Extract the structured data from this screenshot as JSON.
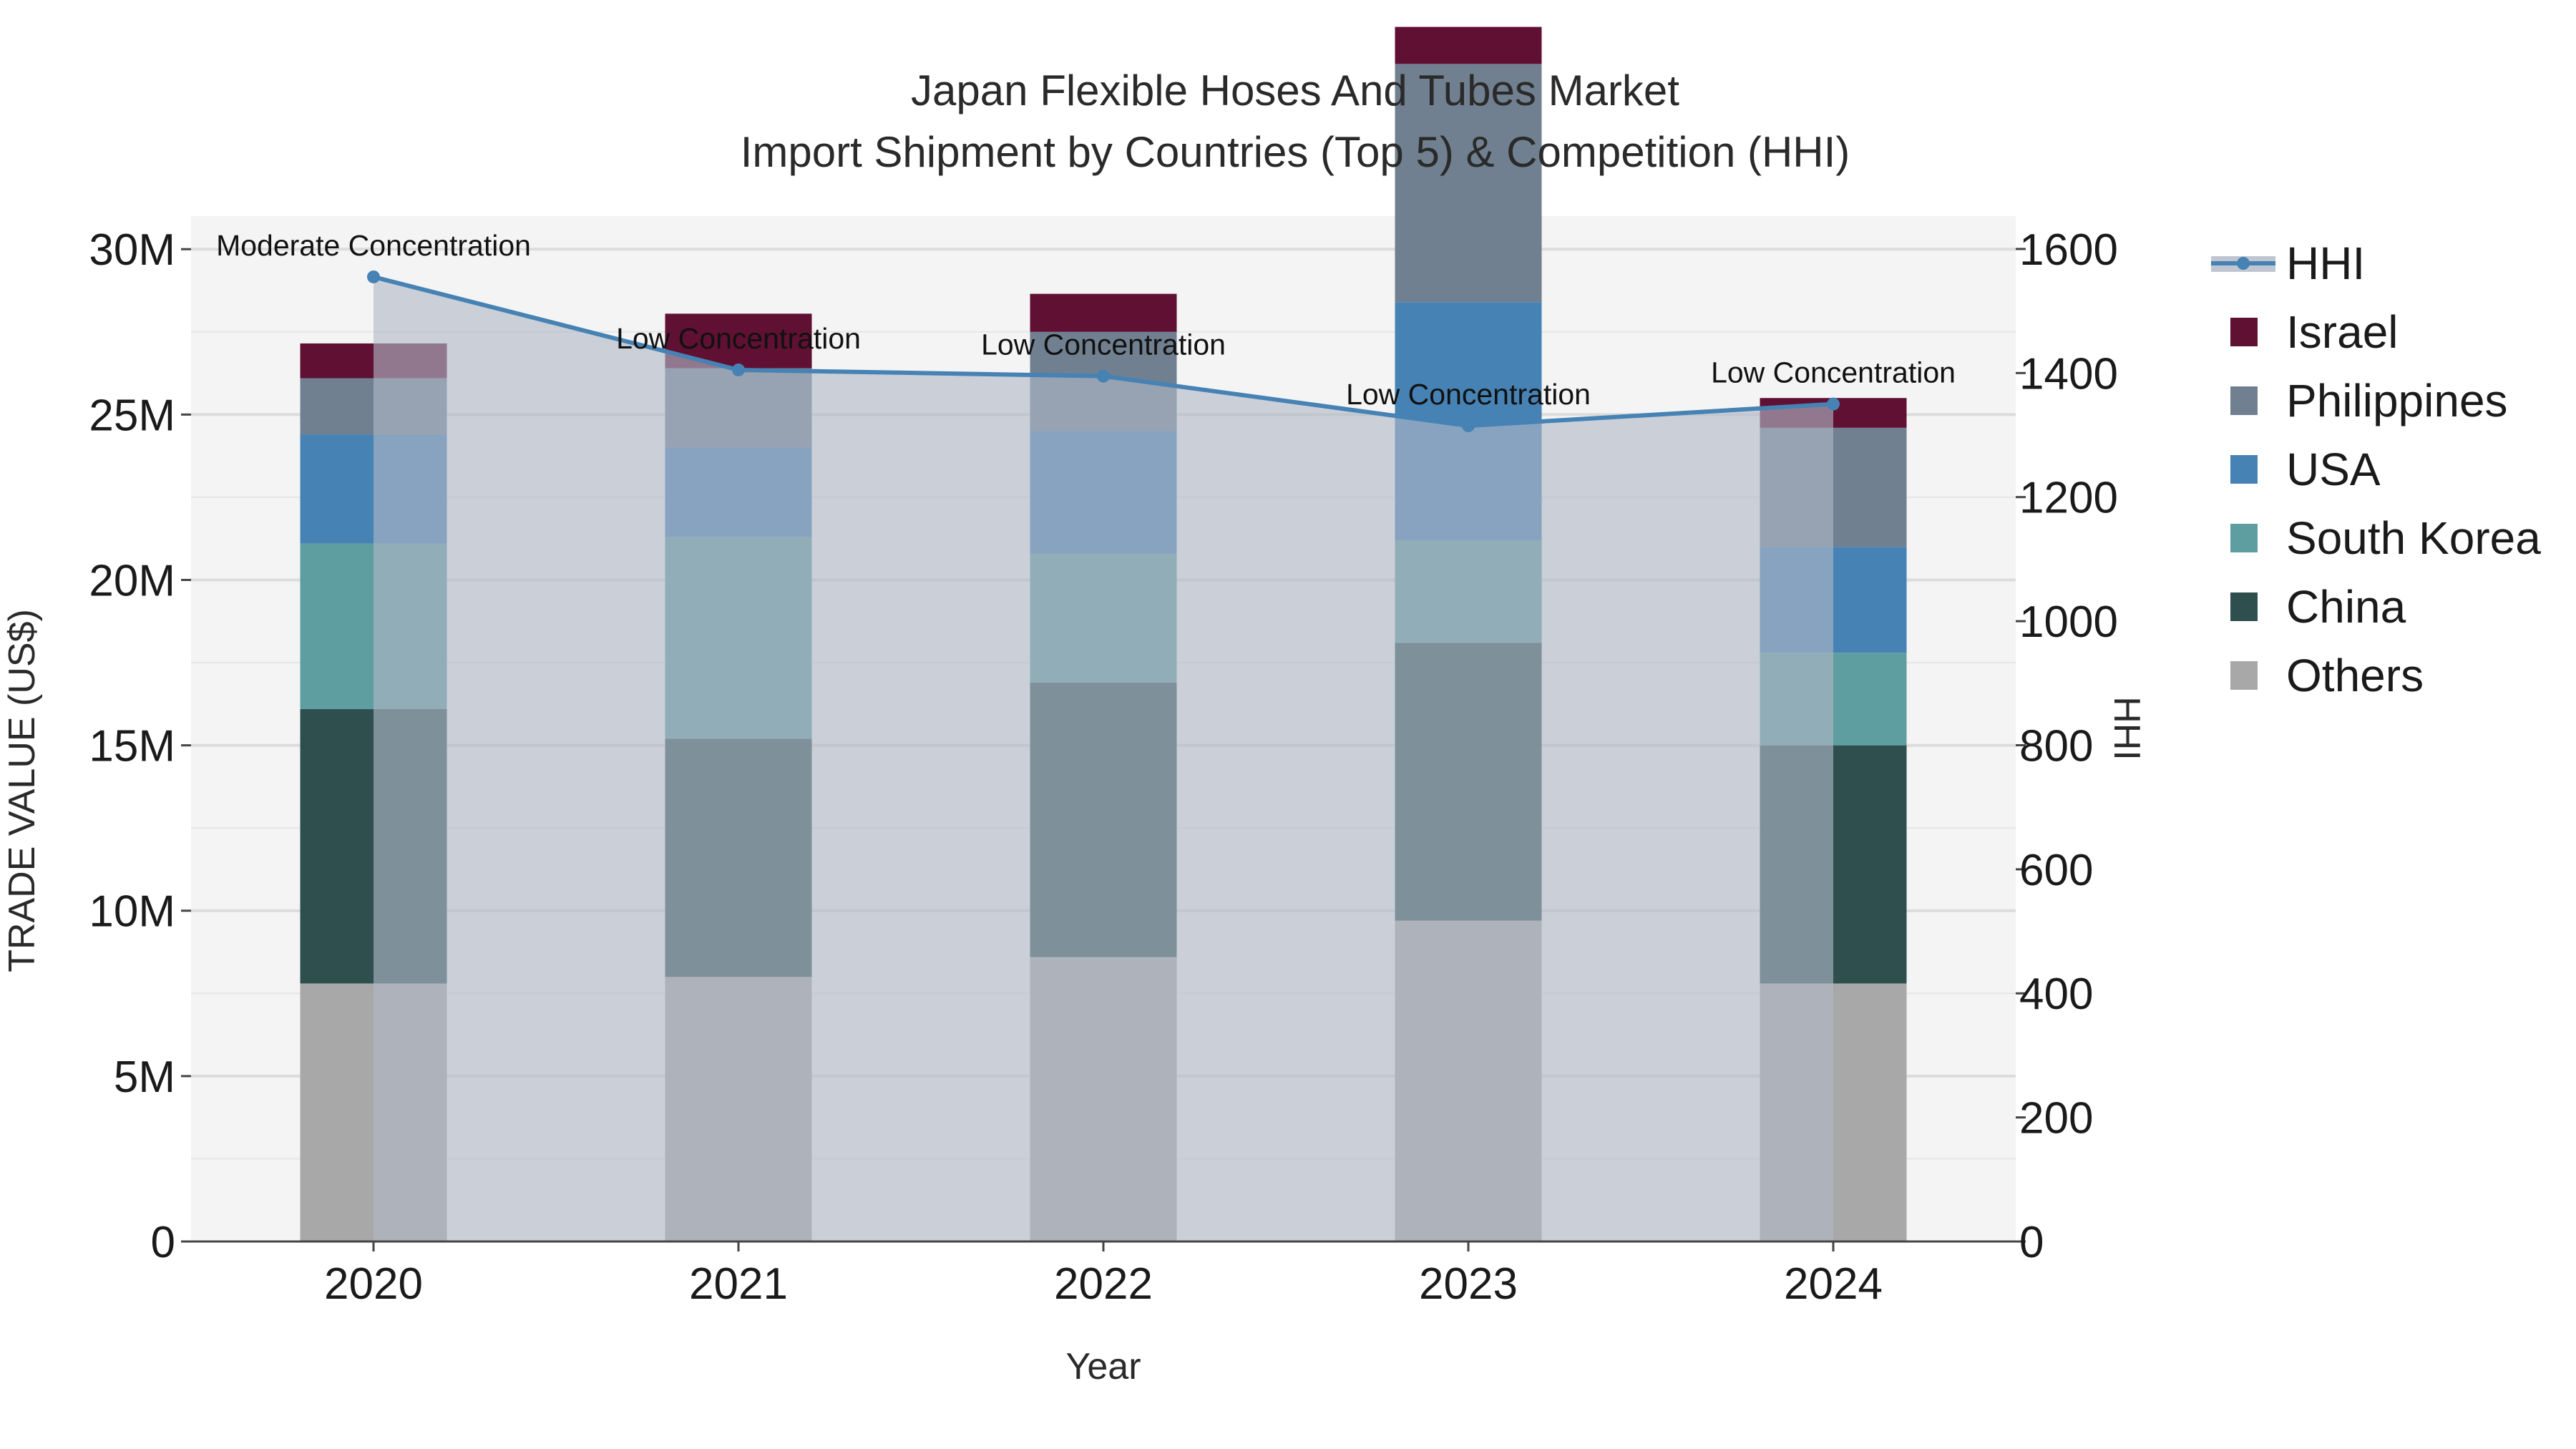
{
  "chart_data": {
    "type": "bar",
    "title": "Japan Flexible Hoses And Tubes Market",
    "subtitle": "Import Shipment by Countries (Top 5) & Competition (HHI)",
    "xlabel": "Year",
    "ylabel": "TRADE VALUE (US$)",
    "y2label": "HHI",
    "categories": [
      "2020",
      "2021",
      "2022",
      "2023",
      "2024"
    ],
    "ylim": [
      0,
      31000000
    ],
    "y2lim": [
      0,
      1653
    ],
    "y_ticks": [
      {
        "value": 0,
        "label": "0"
      },
      {
        "value": 5000000,
        "label": "5M"
      },
      {
        "value": 10000000,
        "label": "10M"
      },
      {
        "value": 15000000,
        "label": "15M"
      },
      {
        "value": 20000000,
        "label": "20M"
      },
      {
        "value": 25000000,
        "label": "25M"
      },
      {
        "value": 30000000,
        "label": "30M"
      }
    ],
    "y2_ticks": [
      {
        "value": 0,
        "label": "0"
      },
      {
        "value": 200,
        "label": "200"
      },
      {
        "value": 400,
        "label": "400"
      },
      {
        "value": 600,
        "label": "600"
      },
      {
        "value": 800,
        "label": "800"
      },
      {
        "value": 1000,
        "label": "1000"
      },
      {
        "value": 1200,
        "label": "1200"
      },
      {
        "value": 1400,
        "label": "1400"
      },
      {
        "value": 1600,
        "label": "1600"
      }
    ],
    "series": [
      {
        "name": "Others",
        "color": "#a8a8a8",
        "values": [
          7800000,
          8000000,
          8600000,
          9700000,
          7800000
        ]
      },
      {
        "name": "China",
        "color": "#2f4f4f",
        "values": [
          8300000,
          7200000,
          8300000,
          8400000,
          7200000
        ]
      },
      {
        "name": "South Korea",
        "color": "#5f9ea0",
        "values": [
          5000000,
          6100000,
          3900000,
          3100000,
          2800000
        ]
      },
      {
        "name": "USA",
        "color": "#4682b4",
        "values": [
          3300000,
          2700000,
          3700000,
          7200000,
          3200000
        ]
      },
      {
        "name": "Philippines",
        "color": "#708090",
        "values": [
          1700000,
          2400000,
          3000000,
          7200000,
          3600000
        ]
      },
      {
        "name": "Israel",
        "color": "#5f1033",
        "values": [
          1050000,
          1650000,
          1150000,
          1120000,
          900000
        ]
      }
    ],
    "hhi": {
      "name": "HHI",
      "color": "#4682b4",
      "values": [
        1555,
        1405,
        1395,
        1315,
        1350
      ],
      "annotations": [
        "Moderate Concentration",
        "Low Concentration",
        "Low Concentration",
        "Low Concentration",
        "Low Concentration"
      ]
    },
    "legend": [
      "HHI",
      "Israel",
      "Philippines",
      "USA",
      "South Korea",
      "China",
      "Others"
    ],
    "legend_position": "right"
  }
}
